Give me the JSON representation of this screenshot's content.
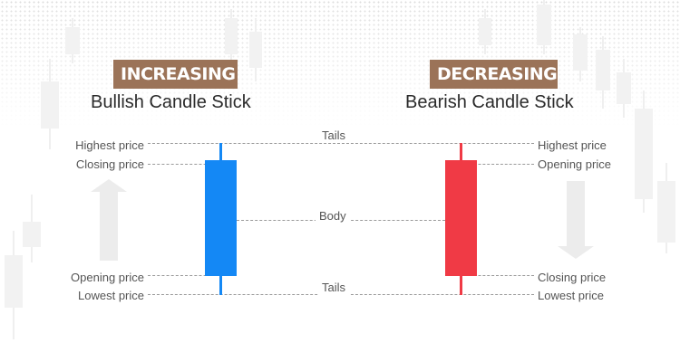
{
  "bullish": {
    "badge": "INCREASING",
    "title": "Bullish Candle Stick",
    "labels": [
      "Highest price",
      "Closing price",
      "Opening price",
      "Lowest price"
    ],
    "color": "#1488f5"
  },
  "bearish": {
    "badge": "DECREASING",
    "title": "Bearish Candle Stick",
    "labels": [
      "Highest price",
      "Opening price",
      "Closing price",
      "Lowest price"
    ],
    "color": "#f03a45"
  },
  "middle": {
    "top_tails": "Tails",
    "body": "Body",
    "bottom_tails": "Tails"
  },
  "arrows": {
    "left": "up-arrow-icon",
    "right": "down-arrow-icon"
  },
  "colors": {
    "badge": "#9b7358",
    "arrow": "#ececec"
  }
}
